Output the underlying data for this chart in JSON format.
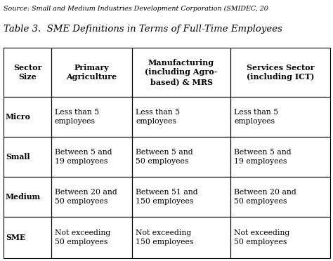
{
  "source_text": "Source: Small and Medium Industries Development Corporation (SMIDEC, 20",
  "title": "Table 3.  SME Definitions in Terms of Full-Time Employees",
  "col_headers": [
    "Sector\nSize",
    "Primary\nAgriculture",
    "Manufacturing\n(including Agro-\nbased) & MRS",
    "Services Sector\n(including ICT)"
  ],
  "rows": [
    {
      "label": "Micro",
      "col1": "Less than 5\nemployees",
      "col2": "Less than 5\nemployees",
      "col3": "Less than 5\nemployees"
    },
    {
      "label": "Small",
      "col1": "Between 5 and\n19 employees",
      "col2": "Between 5 and\n50 employees",
      "col3": "Between 5 and\n19 employees"
    },
    {
      "label": "Medium",
      "col1": "Between 20 and\n50 employees",
      "col2": "Between 51 and\n150 employees",
      "col3": "Between 20 and\n50 employees"
    },
    {
      "label": "SME",
      "col1": "Not exceeding\n50 employees",
      "col2": "Not exceeding\n150 employees",
      "col3": "Not exceeding\n50 employees"
    }
  ],
  "bg_color": "#ffffff",
  "text_color": "#000000",
  "border_color": "#000000",
  "source_fontsize": 6.8,
  "title_fontsize": 9.5,
  "header_fontsize": 8.0,
  "cell_fontsize": 7.8
}
